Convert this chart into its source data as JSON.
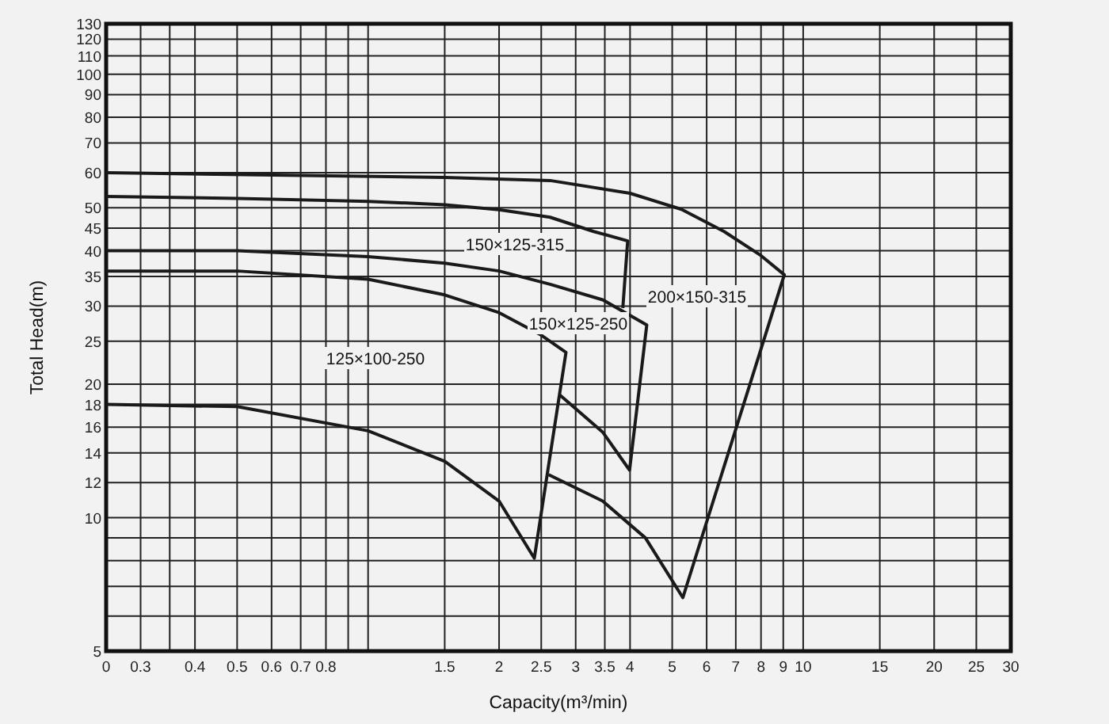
{
  "chart_data": {
    "type": "line",
    "xlabel": "Capacity(m³/min)",
    "ylabel": "Total Head(m)",
    "log": "xy",
    "grid": true,
    "xlim": [
      0.25,
      30
    ],
    "ylim": [
      5,
      130
    ],
    "xticks": [
      {
        "value": 0.25,
        "label": "0"
      },
      0.3,
      {
        "value": 0.35,
        "label": null
      },
      0.4,
      0.5,
      0.6,
      0.7,
      0.8,
      {
        "value": 0.9,
        "label": null
      },
      {
        "value": 1,
        "label": null
      },
      1.5,
      2,
      2.5,
      3,
      3.5,
      4,
      5,
      6,
      7,
      8,
      9,
      10,
      15,
      20,
      25,
      30
    ],
    "yticks": [
      5,
      {
        "value": 6,
        "label": null
      },
      {
        "value": 7,
        "label": null
      },
      {
        "value": 8,
        "label": null
      },
      {
        "value": 9,
        "label": null
      },
      10,
      12,
      14,
      16,
      18,
      20,
      25,
      30,
      35,
      40,
      45,
      50,
      60,
      70,
      80,
      90,
      100,
      110,
      120,
      130
    ],
    "series": [
      {
        "color": "#1a1a1a",
        "x": [
          0.25,
          0.5,
          1,
          1.5,
          2,
          2.41,
          2.85,
          2.5,
          2,
          1.5,
          1,
          0.5,
          0.25
        ],
        "values": [
          18,
          17.8,
          15.7,
          13.4,
          10.9,
          8.1,
          23.6,
          25.8,
          29,
          31.8,
          34.5,
          36,
          36
        ]
      },
      {
        "color": "#1a1a1a",
        "x": [
          0.25,
          0.5,
          1,
          1.5,
          2,
          2.62,
          3.46,
          4.37,
          3.99,
          3.46,
          2.76
        ],
        "values": [
          40,
          40,
          38.8,
          37.5,
          36,
          33.6,
          31,
          27.2,
          12.8,
          15.6,
          18.9
        ]
      },
      {
        "color": "#1a1a1a",
        "x": [
          0.25,
          0.5,
          1,
          1.5,
          2,
          2.62,
          3.3,
          3.95,
          3.85
        ],
        "values": [
          53,
          52.5,
          51.7,
          50.8,
          49.5,
          47.6,
          44.2,
          42.1,
          29.7
        ]
      },
      {
        "color": "#1a1a1a",
        "x": [
          0.25,
          1.5,
          2.62,
          4,
          5.25,
          6.58,
          8,
          9.05,
          5.29,
          4.34,
          3.46,
          2.6
        ],
        "values": [
          60,
          58.5,
          57.6,
          53.9,
          49.6,
          44.2,
          39,
          35.3,
          6.6,
          9,
          10.9,
          12.5
        ]
      }
    ],
    "annotations": [
      "125×100-250",
      "150×125-250",
      "150×125-315",
      "200×150-315"
    ]
  }
}
